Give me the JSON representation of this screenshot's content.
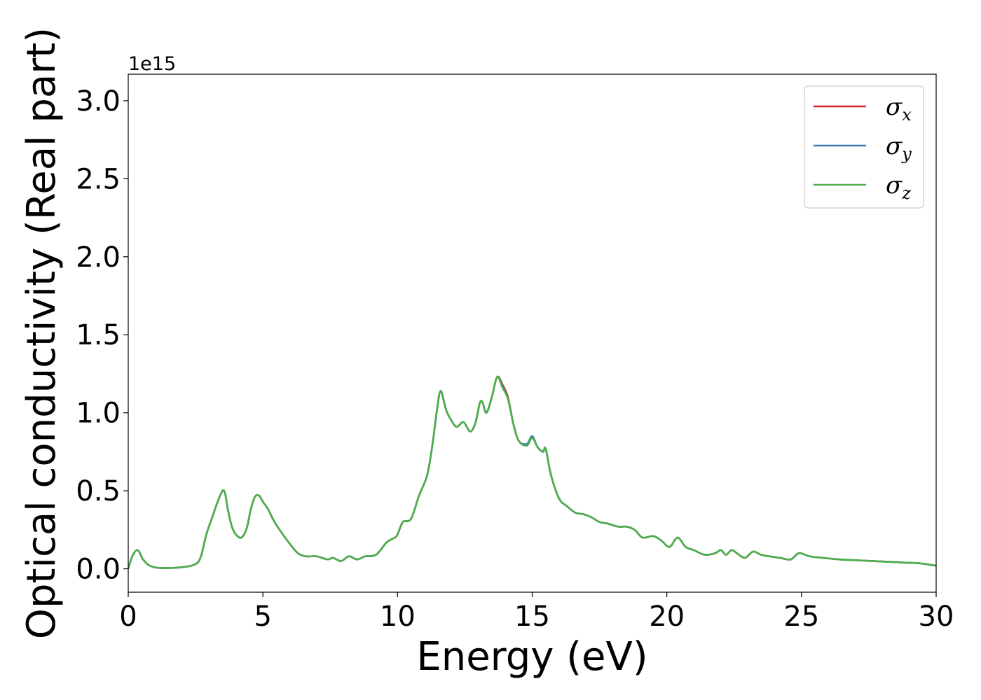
{
  "chart_data": {
    "type": "line",
    "title": "",
    "xlabel": "Energy (eV)",
    "ylabel": "Optical conductivity (Real part)",
    "y_offset_label": "1e15",
    "y_scale_factor": 1000000000000000.0,
    "xlim": [
      0,
      30
    ],
    "ylim": [
      -0.15,
      3.17
    ],
    "x_ticks": [
      0,
      5,
      10,
      15,
      20,
      25,
      30
    ],
    "x_tick_labels": [
      "0",
      "5",
      "10",
      "15",
      "20",
      "25",
      "30"
    ],
    "y_ticks": [
      0.0,
      0.5,
      1.0,
      1.5,
      2.0,
      2.5,
      3.0
    ],
    "y_tick_labels": [
      "0.0",
      "0.5",
      "1.0",
      "1.5",
      "2.0",
      "2.5",
      "3.0"
    ],
    "grid": false,
    "legend_position": "top-right",
    "series": [
      {
        "name": "σx",
        "legend_symbol": "σ",
        "legend_sub": "x",
        "color": "#d62728",
        "x": [
          0,
          0.15,
          0.35,
          0.55,
          0.8,
          1.2,
          2.0,
          2.5,
          2.7,
          2.9,
          3.1,
          3.3,
          3.5,
          3.6,
          3.7,
          3.85,
          4.0,
          4.2,
          4.4,
          4.55,
          4.7,
          4.85,
          5.0,
          5.2,
          5.4,
          5.7,
          6.0,
          6.3,
          6.6,
          7.0,
          7.4,
          7.6,
          7.9,
          8.2,
          8.5,
          8.8,
          9.2,
          9.6,
          9.9,
          10.0,
          10.2,
          10.5,
          10.8,
          11.1,
          11.3,
          11.45,
          11.6,
          11.8,
          12.0,
          12.2,
          12.45,
          12.7,
          12.9,
          13.05,
          13.15,
          13.3,
          13.5,
          13.7,
          13.9,
          14.1,
          14.3,
          14.5,
          14.8,
          15.0,
          15.2,
          15.4,
          15.5,
          15.7,
          16.0,
          16.3,
          16.6,
          16.9,
          17.2,
          17.5,
          17.8,
          18.2,
          18.5,
          18.8,
          19.1,
          19.5,
          19.8,
          20.1,
          20.4,
          20.7,
          21.0,
          21.4,
          21.8,
          22.0,
          22.2,
          22.4,
          22.6,
          22.9,
          23.2,
          23.5,
          23.8,
          24.2,
          24.6,
          24.9,
          25.3,
          25.8,
          26.4,
          27.0,
          27.6,
          28.2,
          28.8,
          29.4,
          30.0
        ],
        "y": [
          0.0,
          0.08,
          0.12,
          0.06,
          0.02,
          0.005,
          0.01,
          0.03,
          0.08,
          0.22,
          0.32,
          0.42,
          0.5,
          0.48,
          0.38,
          0.27,
          0.22,
          0.2,
          0.26,
          0.38,
          0.46,
          0.47,
          0.43,
          0.38,
          0.31,
          0.23,
          0.16,
          0.1,
          0.08,
          0.08,
          0.06,
          0.07,
          0.05,
          0.08,
          0.06,
          0.08,
          0.09,
          0.17,
          0.2,
          0.22,
          0.3,
          0.32,
          0.47,
          0.6,
          0.8,
          1.0,
          1.14,
          1.02,
          0.95,
          0.91,
          0.94,
          0.88,
          0.94,
          1.06,
          1.07,
          1.0,
          1.1,
          1.23,
          1.18,
          1.1,
          0.93,
          0.82,
          0.79,
          0.84,
          0.78,
          0.75,
          0.77,
          0.6,
          0.45,
          0.4,
          0.36,
          0.35,
          0.33,
          0.3,
          0.29,
          0.27,
          0.27,
          0.25,
          0.2,
          0.21,
          0.18,
          0.14,
          0.2,
          0.14,
          0.12,
          0.09,
          0.1,
          0.12,
          0.09,
          0.12,
          0.1,
          0.07,
          0.11,
          0.09,
          0.08,
          0.07,
          0.06,
          0.1,
          0.08,
          0.07,
          0.06,
          0.055,
          0.05,
          0.045,
          0.04,
          0.035,
          0.02
        ]
      },
      {
        "name": "σy",
        "legend_symbol": "σ",
        "legend_sub": "y",
        "color": "#377eb8",
        "x": [
          0,
          0.15,
          0.35,
          0.55,
          0.8,
          1.2,
          2.0,
          2.5,
          2.7,
          2.9,
          3.1,
          3.3,
          3.5,
          3.6,
          3.7,
          3.85,
          4.0,
          4.2,
          4.4,
          4.55,
          4.7,
          4.85,
          5.0,
          5.2,
          5.4,
          5.7,
          6.0,
          6.3,
          6.6,
          7.0,
          7.4,
          7.6,
          7.9,
          8.2,
          8.5,
          8.8,
          9.2,
          9.6,
          9.9,
          10.0,
          10.2,
          10.5,
          10.8,
          11.1,
          11.3,
          11.45,
          11.6,
          11.8,
          12.0,
          12.2,
          12.45,
          12.7,
          12.9,
          13.05,
          13.15,
          13.3,
          13.5,
          13.7,
          13.9,
          14.1,
          14.3,
          14.5,
          14.8,
          15.0,
          15.2,
          15.4,
          15.5,
          15.7,
          16.0,
          16.3,
          16.6,
          16.9,
          17.2,
          17.5,
          17.8,
          18.2,
          18.5,
          18.8,
          19.1,
          19.5,
          19.8,
          20.1,
          20.4,
          20.7,
          21.0,
          21.4,
          21.8,
          22.0,
          22.2,
          22.4,
          22.6,
          22.9,
          23.2,
          23.5,
          23.8,
          24.2,
          24.6,
          24.9,
          25.3,
          25.8,
          26.4,
          27.0,
          27.6,
          28.2,
          28.8,
          29.4,
          30.0
        ],
        "y": [
          0.0,
          0.08,
          0.12,
          0.06,
          0.02,
          0.005,
          0.01,
          0.03,
          0.08,
          0.22,
          0.32,
          0.42,
          0.5,
          0.48,
          0.38,
          0.27,
          0.22,
          0.2,
          0.26,
          0.38,
          0.46,
          0.47,
          0.43,
          0.38,
          0.31,
          0.23,
          0.16,
          0.1,
          0.08,
          0.08,
          0.06,
          0.07,
          0.05,
          0.08,
          0.06,
          0.08,
          0.09,
          0.17,
          0.2,
          0.22,
          0.3,
          0.32,
          0.47,
          0.6,
          0.8,
          1.0,
          1.14,
          1.02,
          0.95,
          0.91,
          0.94,
          0.88,
          0.94,
          1.06,
          1.07,
          1.0,
          1.1,
          1.23,
          1.17,
          1.09,
          0.93,
          0.82,
          0.8,
          0.85,
          0.78,
          0.75,
          0.77,
          0.6,
          0.45,
          0.4,
          0.36,
          0.35,
          0.33,
          0.3,
          0.29,
          0.27,
          0.27,
          0.25,
          0.2,
          0.21,
          0.18,
          0.14,
          0.2,
          0.14,
          0.12,
          0.09,
          0.1,
          0.12,
          0.09,
          0.12,
          0.1,
          0.07,
          0.11,
          0.09,
          0.08,
          0.07,
          0.06,
          0.1,
          0.08,
          0.07,
          0.06,
          0.055,
          0.05,
          0.045,
          0.04,
          0.035,
          0.02
        ]
      },
      {
        "name": "σz",
        "legend_symbol": "σ",
        "legend_sub": "z",
        "color": "#4daf4a",
        "x": [
          0,
          0.15,
          0.35,
          0.55,
          0.8,
          1.2,
          2.0,
          2.5,
          2.7,
          2.9,
          3.1,
          3.3,
          3.5,
          3.6,
          3.7,
          3.85,
          4.0,
          4.2,
          4.4,
          4.55,
          4.7,
          4.85,
          5.0,
          5.2,
          5.4,
          5.7,
          6.0,
          6.3,
          6.6,
          7.0,
          7.4,
          7.6,
          7.9,
          8.2,
          8.5,
          8.8,
          9.2,
          9.6,
          9.9,
          10.0,
          10.2,
          10.5,
          10.8,
          11.1,
          11.3,
          11.45,
          11.6,
          11.8,
          12.0,
          12.2,
          12.45,
          12.7,
          12.9,
          13.05,
          13.15,
          13.3,
          13.5,
          13.7,
          13.9,
          14.1,
          14.3,
          14.5,
          14.8,
          15.0,
          15.2,
          15.4,
          15.5,
          15.7,
          16.0,
          16.3,
          16.6,
          16.9,
          17.2,
          17.5,
          17.8,
          18.2,
          18.5,
          18.8,
          19.1,
          19.5,
          19.8,
          20.1,
          20.4,
          20.7,
          21.0,
          21.4,
          21.8,
          22.0,
          22.2,
          22.4,
          22.6,
          22.9,
          23.2,
          23.5,
          23.8,
          24.2,
          24.6,
          24.9,
          25.3,
          25.8,
          26.4,
          27.0,
          27.6,
          28.2,
          28.8,
          29.4,
          30.0
        ],
        "y": [
          0.0,
          0.08,
          0.12,
          0.06,
          0.02,
          0.005,
          0.01,
          0.03,
          0.08,
          0.22,
          0.32,
          0.42,
          0.5,
          0.48,
          0.38,
          0.27,
          0.22,
          0.2,
          0.26,
          0.38,
          0.46,
          0.47,
          0.43,
          0.38,
          0.31,
          0.23,
          0.16,
          0.1,
          0.08,
          0.08,
          0.06,
          0.07,
          0.05,
          0.08,
          0.06,
          0.08,
          0.09,
          0.17,
          0.2,
          0.22,
          0.3,
          0.32,
          0.47,
          0.6,
          0.8,
          1.0,
          1.14,
          1.02,
          0.95,
          0.91,
          0.94,
          0.88,
          0.94,
          1.06,
          1.07,
          1.0,
          1.1,
          1.23,
          1.16,
          1.09,
          0.93,
          0.82,
          0.79,
          0.84,
          0.78,
          0.75,
          0.77,
          0.6,
          0.45,
          0.4,
          0.36,
          0.35,
          0.33,
          0.3,
          0.29,
          0.27,
          0.27,
          0.25,
          0.2,
          0.21,
          0.18,
          0.14,
          0.2,
          0.14,
          0.12,
          0.09,
          0.1,
          0.12,
          0.09,
          0.12,
          0.1,
          0.07,
          0.11,
          0.09,
          0.08,
          0.07,
          0.06,
          0.1,
          0.08,
          0.07,
          0.06,
          0.055,
          0.05,
          0.045,
          0.04,
          0.035,
          0.02
        ]
      }
    ]
  }
}
